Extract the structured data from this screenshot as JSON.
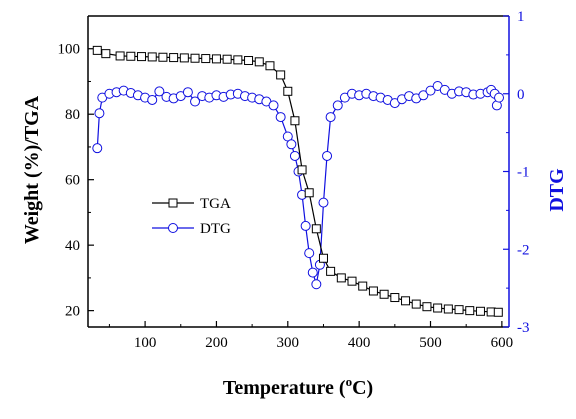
{
  "chart_data": {
    "type": "line",
    "xlabel_main": "Temperature (",
    "xlabel_sup": "o",
    "xlabel_tail": "C)",
    "ylabel": "Weight (%)/TGA",
    "y2label": "DTG",
    "xlim": [
      20,
      610
    ],
    "ylim": [
      15,
      110
    ],
    "y2lim": [
      -3,
      1
    ],
    "xticks": [
      100,
      200,
      300,
      400,
      500,
      600
    ],
    "yticks": [
      20,
      40,
      60,
      80,
      100
    ],
    "y2ticks": [
      -3,
      -2,
      -1,
      0,
      1
    ],
    "colors": {
      "tga": "#000000",
      "dtg": "#1010e0",
      "axis_left": "#000000",
      "axis_right": "#1010e0"
    },
    "legend": {
      "placement": "center-left",
      "entries": [
        "TGA",
        "DTG"
      ]
    },
    "series": [
      {
        "name": "TGA",
        "axis": "left",
        "marker": "open-square",
        "x": [
          33,
          45,
          65,
          80,
          95,
          110,
          125,
          140,
          155,
          170,
          185,
          200,
          215,
          230,
          245,
          260,
          275,
          290,
          300,
          310,
          320,
          330,
          340,
          350,
          360,
          375,
          390,
          405,
          420,
          435,
          450,
          465,
          480,
          495,
          510,
          525,
          540,
          555,
          570,
          585,
          595
        ],
        "y": [
          99.5,
          98.5,
          97.8,
          97.7,
          97.6,
          97.5,
          97.4,
          97.3,
          97.2,
          97.1,
          97.0,
          96.9,
          96.8,
          96.6,
          96.4,
          96.0,
          94.8,
          92.0,
          87.0,
          78.0,
          63.0,
          56.0,
          45.0,
          36.0,
          32.0,
          30.0,
          29.0,
          27.5,
          26.0,
          25.0,
          24.0,
          23.0,
          22.0,
          21.2,
          20.8,
          20.5,
          20.3,
          20.0,
          19.8,
          19.6,
          19.5
        ]
      },
      {
        "name": "DTG",
        "axis": "right",
        "marker": "open-circle",
        "x": [
          33,
          36,
          40,
          50,
          60,
          70,
          80,
          90,
          100,
          110,
          120,
          130,
          140,
          150,
          160,
          170,
          180,
          190,
          200,
          210,
          220,
          230,
          240,
          250,
          260,
          270,
          280,
          290,
          300,
          305,
          310,
          315,
          320,
          325,
          330,
          335,
          340,
          345,
          350,
          355,
          360,
          370,
          380,
          390,
          400,
          410,
          420,
          430,
          440,
          450,
          460,
          470,
          480,
          490,
          500,
          510,
          520,
          530,
          540,
          550,
          560,
          570,
          580,
          585,
          590,
          593,
          596
        ],
        "y": [
          -0.7,
          -0.25,
          -0.05,
          0.0,
          0.02,
          0.04,
          0.01,
          -0.02,
          -0.05,
          -0.08,
          0.03,
          -0.04,
          -0.06,
          -0.03,
          0.02,
          -0.1,
          -0.03,
          -0.05,
          -0.02,
          -0.04,
          -0.01,
          0.0,
          -0.03,
          -0.05,
          -0.07,
          -0.1,
          -0.15,
          -0.3,
          -0.55,
          -0.65,
          -0.8,
          -1.0,
          -1.3,
          -1.7,
          -2.05,
          -2.3,
          -2.45,
          -2.2,
          -1.4,
          -0.8,
          -0.3,
          -0.15,
          -0.05,
          0.0,
          -0.02,
          0.0,
          -0.03,
          -0.05,
          -0.08,
          -0.12,
          -0.07,
          -0.03,
          -0.06,
          -0.02,
          0.04,
          0.1,
          0.05,
          0.0,
          0.03,
          0.02,
          -0.01,
          0.0,
          0.02,
          0.05,
          0.0,
          -0.15,
          -0.05
        ]
      }
    ]
  }
}
